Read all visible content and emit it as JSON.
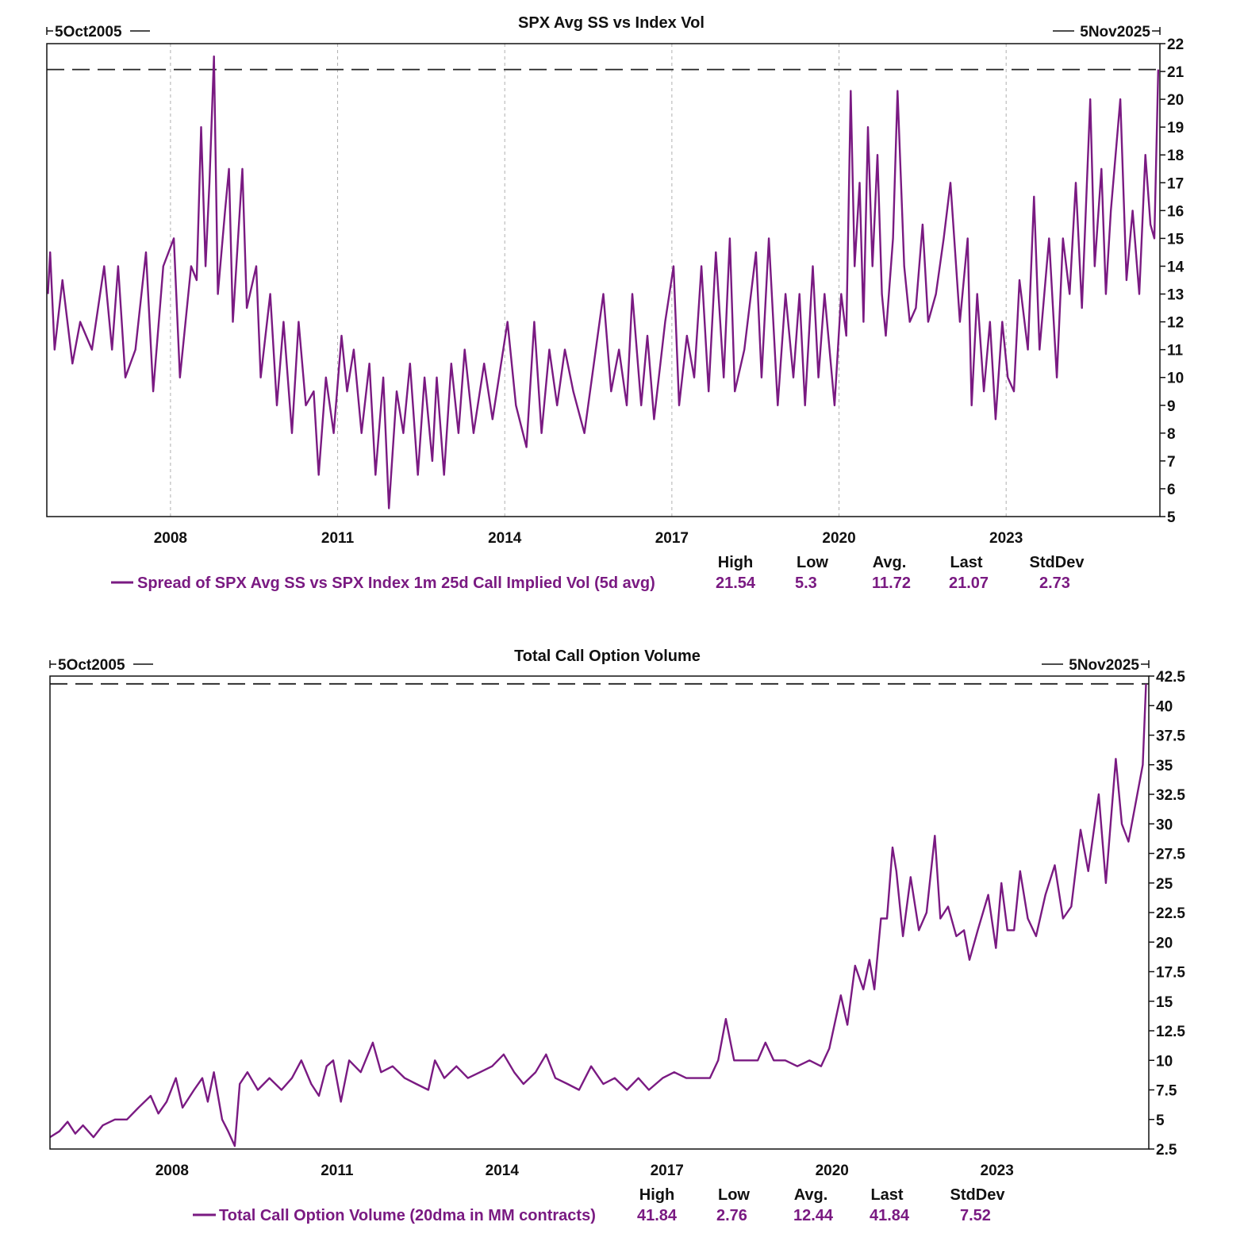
{
  "colors": {
    "series": "#7a1a82",
    "axis": "#111111",
    "grid": "#b0b0b0"
  },
  "chart_data": [
    {
      "type": "line",
      "title": "SPX Avg SS vs Index Vol",
      "start_label": "5Oct2005",
      "end_label": "5Nov2025",
      "xlim": [
        2005.78,
        2025.76
      ],
      "ylim": [
        5,
        22
      ],
      "yticks": [
        5,
        6,
        7,
        8,
        9,
        10,
        11,
        12,
        13,
        14,
        15,
        16,
        17,
        18,
        19,
        20,
        21,
        22
      ],
      "ytick_labels": [
        "5",
        "6",
        "7",
        "8",
        "9",
        "10",
        "11",
        "12",
        "13",
        "14",
        "15",
        "16",
        "17",
        "18",
        "19",
        "20",
        "21",
        "22"
      ],
      "xticks": [
        2008,
        2011,
        2014,
        2017,
        2020,
        2023
      ],
      "xtick_labels": [
        "2008",
        "2011",
        "2014",
        "2017",
        "2020",
        "2023"
      ],
      "grid": "vertical-dashed",
      "reference_line": 21.07,
      "series": [
        {
          "name": "Spread of SPX Avg SS vs SPX Index 1m 25d Call Implied Vol (5d avg)",
          "stats": {
            "High": "21.54",
            "Low": "5.3",
            "Avg.": "11.72",
            "Last": "21.07",
            "StdDev": "2.73"
          },
          "x": [
            2005.8,
            2005.84,
            2005.92,
            2006.06,
            2006.24,
            2006.38,
            2006.59,
            2006.81,
            2006.95,
            2007.06,
            2007.19,
            2007.37,
            2007.56,
            2007.69,
            2007.87,
            2008.06,
            2008.17,
            2008.37,
            2008.47,
            2008.55,
            2008.63,
            2008.7,
            2008.78,
            2008.85,
            2008.98,
            2009.05,
            2009.12,
            2009.29,
            2009.37,
            2009.54,
            2009.62,
            2009.79,
            2009.91,
            2010.03,
            2010.18,
            2010.3,
            2010.43,
            2010.57,
            2010.66,
            2010.79,
            2010.93,
            2011.07,
            2011.17,
            2011.29,
            2011.43,
            2011.57,
            2011.68,
            2011.82,
            2011.92,
            2012.06,
            2012.18,
            2012.3,
            2012.44,
            2012.56,
            2012.7,
            2012.78,
            2012.91,
            2013.04,
            2013.17,
            2013.28,
            2013.44,
            2013.63,
            2013.78,
            2014.05,
            2014.2,
            2014.39,
            2014.53,
            2014.66,
            2014.8,
            2014.94,
            2015.08,
            2015.23,
            2015.43,
            2015.77,
            2015.91,
            2016.05,
            2016.19,
            2016.29,
            2016.45,
            2016.56,
            2016.68,
            2016.88,
            2017.03,
            2017.13,
            2017.27,
            2017.4,
            2017.53,
            2017.66,
            2017.79,
            2017.93,
            2018.04,
            2018.13,
            2018.3,
            2018.51,
            2018.61,
            2018.74,
            2018.9,
            2019.04,
            2019.18,
            2019.29,
            2019.39,
            2019.53,
            2019.63,
            2019.74,
            2019.92,
            2020.04,
            2020.13,
            2020.21,
            2020.28,
            2020.37,
            2020.44,
            2020.52,
            2020.6,
            2020.69,
            2020.77,
            2020.84,
            2020.97,
            2021.05,
            2021.17,
            2021.27,
            2021.38,
            2021.5,
            2021.6,
            2021.74,
            2021.88,
            2022.0,
            2022.17,
            2022.31,
            2022.38,
            2022.48,
            2022.6,
            2022.71,
            2022.81,
            2022.93,
            2023.03,
            2023.14,
            2023.24,
            2023.39,
            2023.5,
            2023.6,
            2023.77,
            2023.91,
            2024.02,
            2024.14,
            2024.25,
            2024.36,
            2024.51,
            2024.59,
            2024.71,
            2024.79,
            2024.88,
            2025.05,
            2025.16,
            2025.27,
            2025.39,
            2025.5,
            2025.59,
            2025.66,
            2025.73
          ],
          "y": [
            13,
            14.5,
            11,
            13.5,
            10.5,
            12,
            11,
            14,
            11,
            14,
            10,
            11,
            14.5,
            9.5,
            14,
            15,
            10,
            14,
            13.5,
            19,
            14,
            17,
            21.54,
            13,
            16,
            17.5,
            12,
            17.5,
            12.5,
            14,
            10,
            13,
            9,
            12,
            8,
            12,
            9,
            9.5,
            6.5,
            10,
            8,
            11.5,
            9.5,
            11,
            8,
            10.5,
            6.5,
            10,
            5.3,
            9.5,
            8,
            10.5,
            6.5,
            10,
            7,
            10,
            6.5,
            10.5,
            8,
            11,
            8,
            10.5,
            8.5,
            12,
            9,
            7.5,
            12,
            8,
            11,
            9,
            11,
            9.5,
            8,
            13,
            9.5,
            11,
            9,
            13,
            9,
            11.5,
            8.5,
            12,
            14,
            9,
            11.5,
            10,
            14,
            9.5,
            14.5,
            10,
            15,
            9.5,
            11,
            14.5,
            10,
            15,
            9,
            13,
            10,
            13,
            9,
            14,
            10,
            13,
            9,
            13,
            11.5,
            20.3,
            14,
            17,
            12,
            19,
            14,
            18,
            13,
            11.5,
            15,
            20.3,
            14,
            12,
            12.5,
            15.5,
            12,
            13,
            15,
            17,
            12,
            15,
            9,
            13,
            9.5,
            12,
            8.5,
            12,
            10,
            9.5,
            13.5,
            11,
            16.5,
            11,
            15,
            10,
            15,
            13,
            17,
            12.5,
            20,
            14,
            17.5,
            13,
            16,
            20,
            13.5,
            16,
            13,
            18,
            15.5,
            15,
            21.07
          ]
        }
      ]
    },
    {
      "type": "line",
      "title": "Total Call Option Volume",
      "start_label": "5Oct2005",
      "end_label": "5Nov2025",
      "xlim": [
        2005.78,
        2025.76
      ],
      "ylim": [
        2.5,
        42.5
      ],
      "yticks": [
        2.5,
        5,
        7.5,
        10,
        12.5,
        15,
        17.5,
        20,
        22.5,
        25,
        27.5,
        30,
        32.5,
        35,
        37.5,
        40,
        42.5
      ],
      "ytick_labels": [
        "2.5",
        "5",
        "7.5",
        "10",
        "12.5",
        "15",
        "17.5",
        "20",
        "22.5",
        "25",
        "27.5",
        "30",
        "32.5",
        "35",
        "37.5",
        "40",
        "42.5"
      ],
      "xticks": [
        2008,
        2011,
        2014,
        2017,
        2020,
        2023
      ],
      "xtick_labels": [
        "2008",
        "2011",
        "2014",
        "2017",
        "2020",
        "2023"
      ],
      "grid": "none",
      "reference_line": 41.84,
      "series": [
        {
          "name": "Total Call Option Volume (20dma in MM contracts)",
          "stats": {
            "High": "41.84",
            "Low": "2.76",
            "Avg.": "12.44",
            "Last": "41.84",
            "StdDev": "7.52"
          },
          "x": [
            2005.78,
            2005.95,
            2006.1,
            2006.24,
            2006.38,
            2006.57,
            2006.74,
            2006.96,
            2007.18,
            2007.39,
            2007.61,
            2007.75,
            2007.9,
            2008.07,
            2008.19,
            2008.4,
            2008.55,
            2008.65,
            2008.76,
            2008.91,
            2009.02,
            2009.14,
            2009.23,
            2009.37,
            2009.56,
            2009.77,
            2009.99,
            2010.18,
            2010.35,
            2010.53,
            2010.67,
            2010.81,
            2010.93,
            2011.07,
            2011.22,
            2011.43,
            2011.65,
            2011.8,
            2012.01,
            2012.23,
            2012.44,
            2012.66,
            2012.78,
            2012.95,
            2013.17,
            2013.38,
            2013.6,
            2013.82,
            2014.03,
            2014.22,
            2014.39,
            2014.61,
            2014.8,
            2014.97,
            2015.19,
            2015.4,
            2015.62,
            2015.84,
            2016.05,
            2016.27,
            2016.48,
            2016.67,
            2016.92,
            2017.13,
            2017.35,
            2017.56,
            2017.78,
            2017.93,
            2018.07,
            2018.22,
            2018.43,
            2018.65,
            2018.79,
            2018.94,
            2019.15,
            2019.37,
            2019.59,
            2019.8,
            2019.95,
            2020.16,
            2020.28,
            2020.42,
            2020.57,
            2020.68,
            2020.77,
            2020.89,
            2021.0,
            2021.1,
            2021.17,
            2021.29,
            2021.43,
            2021.58,
            2021.72,
            2021.87,
            2021.97,
            2022.11,
            2022.26,
            2022.4,
            2022.5,
            2022.65,
            2022.84,
            2022.98,
            2023.08,
            2023.19,
            2023.31,
            2023.42,
            2023.56,
            2023.71,
            2023.88,
            2024.05,
            2024.2,
            2024.35,
            2024.52,
            2024.66,
            2024.85,
            2024.98,
            2025.16,
            2025.27,
            2025.39,
            2025.53,
            2025.65,
            2025.71
          ],
          "y": [
            3.5,
            4,
            4.8,
            3.8,
            4.5,
            3.5,
            4.5,
            5,
            5,
            6,
            7,
            5.5,
            6.5,
            8.5,
            6,
            7.5,
            8.5,
            6.5,
            9,
            5,
            4,
            2.76,
            8,
            9,
            7.5,
            8.5,
            7.5,
            8.5,
            10,
            8,
            7,
            9.5,
            10,
            6.5,
            10,
            9,
            11.5,
            9,
            9.5,
            8.5,
            8,
            7.5,
            10,
            8.5,
            9.5,
            8.5,
            9,
            9.5,
            10.5,
            9,
            8,
            9,
            10.5,
            8.5,
            8,
            7.5,
            9.5,
            8,
            8.5,
            7.5,
            8.5,
            7.5,
            8.5,
            9,
            8.5,
            8.5,
            8.5,
            10,
            13.5,
            10,
            10,
            10,
            11.5,
            10,
            10,
            9.5,
            10,
            9.5,
            11,
            15.5,
            13,
            18,
            16,
            18.5,
            16,
            22,
            22,
            28,
            26,
            20.5,
            25.5,
            21,
            22.5,
            29,
            22,
            23,
            20.5,
            21,
            18.5,
            21,
            24,
            19.5,
            25,
            21,
            21,
            26,
            22,
            20.5,
            24,
            26.5,
            22,
            23,
            29.5,
            26,
            32.5,
            25,
            35.5,
            30,
            28.5,
            32,
            35,
            41.84
          ]
        }
      ]
    }
  ]
}
